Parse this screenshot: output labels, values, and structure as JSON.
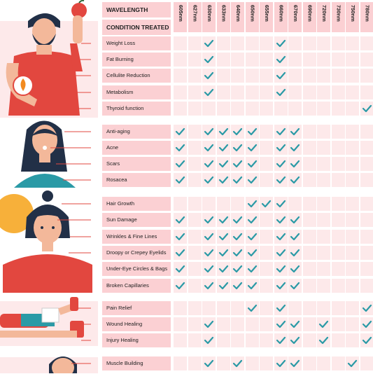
{
  "header": {
    "wavelength_label": "WAVELENGTH",
    "condition_label": "CONDITION TREATED"
  },
  "wavelengths": [
    "605nm",
    "627nm",
    "630nm",
    "633nm",
    "640nm",
    "650nm",
    "655nm",
    "660nm",
    "670nm",
    "690nm",
    "720nm",
    "730nm",
    "750nm",
    "780nm"
  ],
  "groups": [
    {
      "name": "body",
      "rows": [
        {
          "label": "Weight Loss",
          "checks": [
            2,
            7
          ]
        },
        {
          "label": "Fat Burning",
          "checks": [
            2,
            7
          ]
        },
        {
          "label": "Cellulite Reduction",
          "checks": [
            2,
            7
          ]
        },
        {
          "label": "Metabolism",
          "checks": [
            2,
            7
          ]
        },
        {
          "label": "Thyroid function",
          "checks": [
            13
          ]
        }
      ]
    },
    {
      "name": "face",
      "rows": [
        {
          "label": "Anti-aging",
          "checks": [
            0,
            2,
            3,
            4,
            5,
            7,
            8
          ]
        },
        {
          "label": "Acne",
          "checks": [
            0,
            2,
            3,
            4,
            5,
            7,
            8
          ]
        },
        {
          "label": "Scars",
          "checks": [
            0,
            2,
            3,
            4,
            5,
            7,
            8
          ]
        },
        {
          "label": "Rosacea",
          "checks": [
            0,
            2,
            3,
            4,
            5,
            7,
            8
          ]
        }
      ]
    },
    {
      "name": "skin",
      "rows": [
        {
          "label": "Hair Growth",
          "checks": [
            5,
            6,
            7
          ]
        },
        {
          "label": "Sun Damage",
          "checks": [
            0,
            2,
            3,
            4,
            5,
            7,
            8
          ]
        },
        {
          "label": "Wrinkles & Fine Lines",
          "checks": [
            0,
            2,
            3,
            4,
            5,
            7,
            8
          ]
        },
        {
          "label": "Droopy or Crepey Eyelids",
          "checks": [
            0,
            2,
            3,
            4,
            5,
            7,
            8
          ]
        },
        {
          "label": "Under-Eye Circles & Bags",
          "checks": [
            0,
            2,
            3,
            4,
            5,
            7,
            8
          ]
        },
        {
          "label": "Broken Capillaries",
          "checks": [
            0,
            2,
            3,
            4,
            5,
            7,
            8
          ]
        }
      ]
    },
    {
      "name": "injury",
      "rows": [
        {
          "label": "Pain Relief",
          "checks": [
            5,
            7,
            13
          ]
        },
        {
          "label": "Wound Healing",
          "checks": [
            2,
            7,
            8,
            10,
            13
          ]
        },
        {
          "label": "Injury Healing",
          "checks": [
            2,
            7,
            8,
            10,
            13
          ]
        }
      ]
    },
    {
      "name": "muscle",
      "rows": [
        {
          "label": "Muscle Building",
          "checks": [
            2,
            4,
            7,
            8,
            12
          ]
        }
      ]
    }
  ],
  "colors": {
    "label_bg": "#fbd0d3",
    "cell_bg": "#fde9ea",
    "check": "#2a9aa6",
    "accent_red": "#e2473f"
  }
}
